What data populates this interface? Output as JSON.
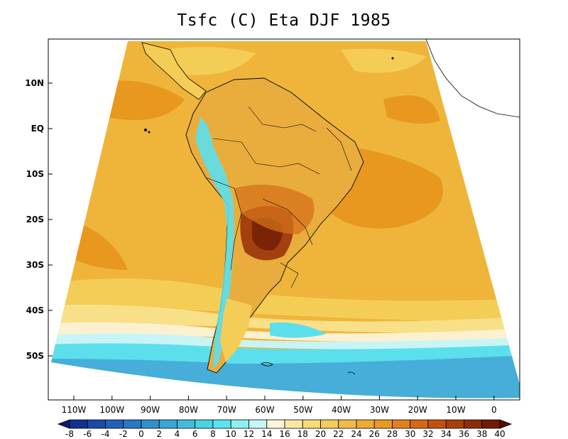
{
  "title": "Tsfc (C) Eta DJF 1985",
  "lat_labels": [
    "10N",
    "EQ",
    "10S",
    "20S",
    "30S",
    "40S",
    "50S"
  ],
  "lon_labels": [
    "110W",
    "100W",
    "90W",
    "80W",
    "70W",
    "60W",
    "50W",
    "40W",
    "30W",
    "20W",
    "10W",
    "0"
  ],
  "colorbar": {
    "labels": [
      "-8",
      "-6",
      "-4",
      "-2",
      "0",
      "2",
      "4",
      "6",
      "8",
      "10",
      "12",
      "14",
      "16",
      "18",
      "20",
      "22",
      "24",
      "26",
      "28",
      "30",
      "32",
      "34",
      "36",
      "38",
      "40"
    ],
    "colors": [
      "#0a1a78",
      "#12308f",
      "#1a4aa8",
      "#2060b8",
      "#2878c4",
      "#3090cc",
      "#3aa6d4",
      "#42bcdc",
      "#4ad2e4",
      "#5ce4ec",
      "#8ef0f0",
      "#c8f6f6",
      "#fff4dc",
      "#fce8a4",
      "#f8da78",
      "#f4cc5c",
      "#f0bc48",
      "#eeaa34",
      "#e89a22",
      "#e0821c",
      "#d46a16",
      "#c05210",
      "#a8400c",
      "#8c2c08",
      "#701a04",
      "#5a0a02"
    ]
  },
  "colors": {
    "ocean_mid": "#efb53a",
    "ocean_warm": "#e8981f",
    "ocean_light": "#f4cd57",
    "ocean_pale": "#f8e088",
    "cream": "#fbf0d0",
    "cyan_light": "#c8f4f6",
    "cyan": "#5cdfec",
    "blue": "#46aed8",
    "hot": "#a2400f",
    "hotter": "#7a2405"
  }
}
